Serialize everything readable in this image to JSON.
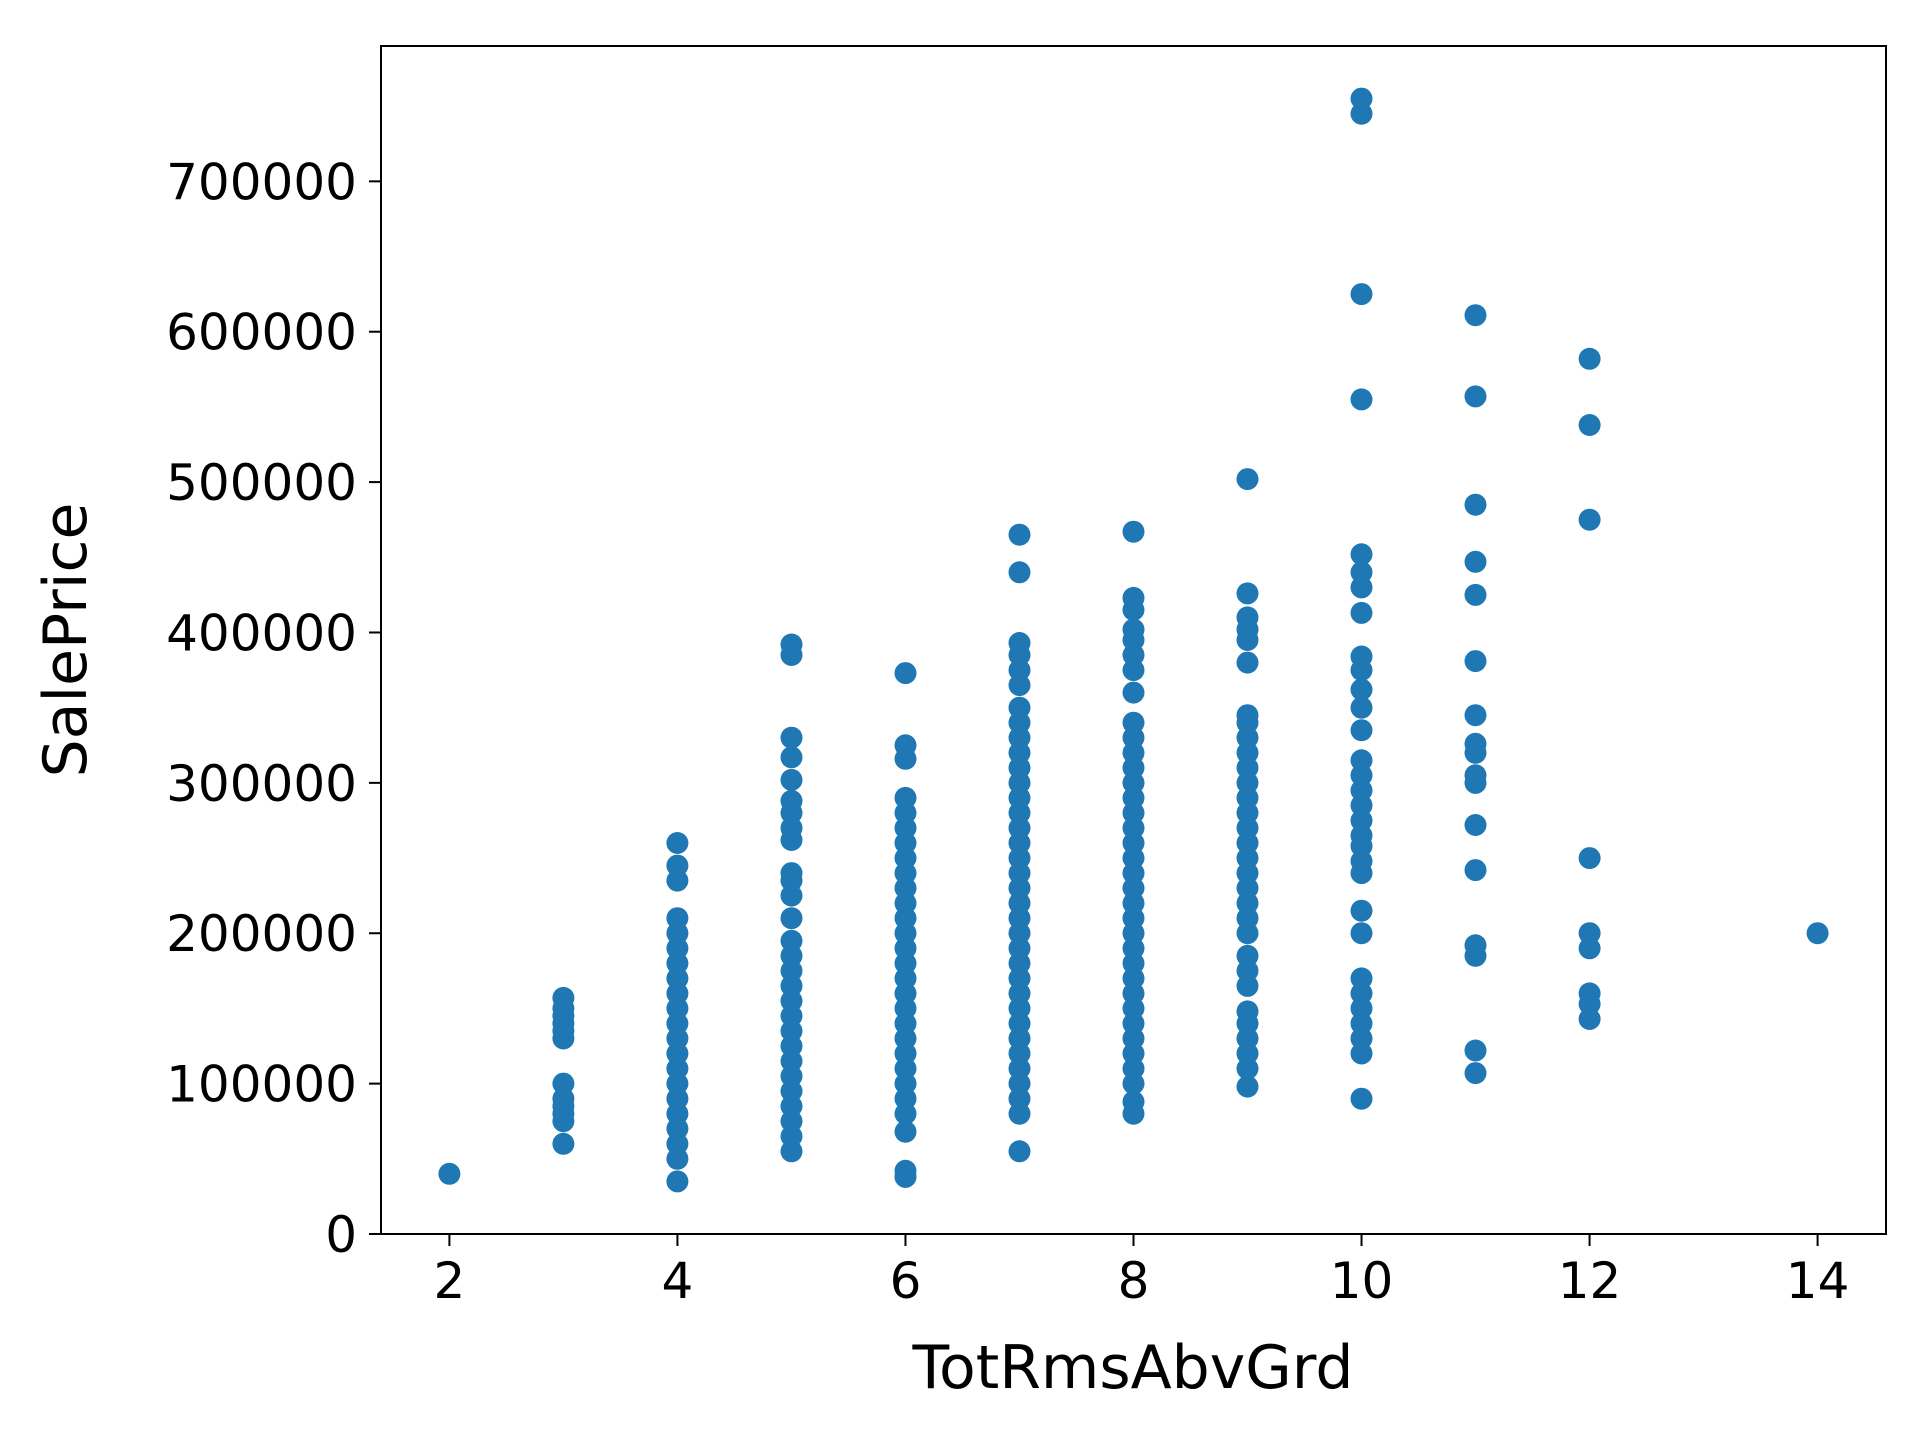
{
  "chart_data": {
    "type": "scatter",
    "title": "",
    "xlabel": "TotRmsAbvGrd",
    "ylabel": "SalePrice",
    "xlim": [
      1.4,
      14.6
    ],
    "ylim": [
      0,
      790000
    ],
    "xticks": [
      2,
      4,
      6,
      8,
      10,
      12,
      14
    ],
    "yticks": [
      0,
      100000,
      200000,
      300000,
      400000,
      500000,
      600000,
      700000
    ],
    "grid": false,
    "legend": "none",
    "marker_color": "#1f77b4",
    "series": [
      {
        "points": [
          [
            2,
            40000
          ],
          [
            3,
            60000
          ],
          [
            3,
            75000
          ],
          [
            3,
            80000
          ],
          [
            3,
            85000
          ],
          [
            3,
            90000
          ],
          [
            3,
            100000
          ],
          [
            3,
            130000
          ],
          [
            3,
            135000
          ],
          [
            3,
            140000
          ],
          [
            3,
            145000
          ],
          [
            3,
            150000
          ],
          [
            3,
            157000
          ],
          [
            4,
            35000
          ],
          [
            4,
            50000
          ],
          [
            4,
            60000
          ],
          [
            4,
            70000
          ],
          [
            4,
            80000
          ],
          [
            4,
            90000
          ],
          [
            4,
            100000
          ],
          [
            4,
            110000
          ],
          [
            4,
            120000
          ],
          [
            4,
            130000
          ],
          [
            4,
            140000
          ],
          [
            4,
            150000
          ],
          [
            4,
            160000
          ],
          [
            4,
            170000
          ],
          [
            4,
            180000
          ],
          [
            4,
            190000
          ],
          [
            4,
            200000
          ],
          [
            4,
            210000
          ],
          [
            4,
            235000
          ],
          [
            4,
            245000
          ],
          [
            4,
            260000
          ],
          [
            5,
            55000
          ],
          [
            5,
            65000
          ],
          [
            5,
            75000
          ],
          [
            5,
            85000
          ],
          [
            5,
            95000
          ],
          [
            5,
            105000
          ],
          [
            5,
            115000
          ],
          [
            5,
            125000
          ],
          [
            5,
            135000
          ],
          [
            5,
            145000
          ],
          [
            5,
            155000
          ],
          [
            5,
            165000
          ],
          [
            5,
            175000
          ],
          [
            5,
            185000
          ],
          [
            5,
            195000
          ],
          [
            5,
            210000
          ],
          [
            5,
            225000
          ],
          [
            5,
            235000
          ],
          [
            5,
            240000
          ],
          [
            5,
            262000
          ],
          [
            5,
            270000
          ],
          [
            5,
            280000
          ],
          [
            5,
            288000
          ],
          [
            5,
            302000
          ],
          [
            5,
            317000
          ],
          [
            5,
            330000
          ],
          [
            5,
            385000
          ],
          [
            5,
            392000
          ],
          [
            6,
            38000
          ],
          [
            6,
            42000
          ],
          [
            6,
            68000
          ],
          [
            6,
            80000
          ],
          [
            6,
            90000
          ],
          [
            6,
            100000
          ],
          [
            6,
            110000
          ],
          [
            6,
            120000
          ],
          [
            6,
            130000
          ],
          [
            6,
            140000
          ],
          [
            6,
            150000
          ],
          [
            6,
            160000
          ],
          [
            6,
            170000
          ],
          [
            6,
            180000
          ],
          [
            6,
            190000
          ],
          [
            6,
            200000
          ],
          [
            6,
            210000
          ],
          [
            6,
            220000
          ],
          [
            6,
            230000
          ],
          [
            6,
            240000
          ],
          [
            6,
            250000
          ],
          [
            6,
            260000
          ],
          [
            6,
            270000
          ],
          [
            6,
            280000
          ],
          [
            6,
            290000
          ],
          [
            6,
            316000
          ],
          [
            6,
            325000
          ],
          [
            6,
            373000
          ],
          [
            7,
            55000
          ],
          [
            7,
            80000
          ],
          [
            7,
            90000
          ],
          [
            7,
            100000
          ],
          [
            7,
            110000
          ],
          [
            7,
            120000
          ],
          [
            7,
            130000
          ],
          [
            7,
            140000
          ],
          [
            7,
            150000
          ],
          [
            7,
            160000
          ],
          [
            7,
            170000
          ],
          [
            7,
            180000
          ],
          [
            7,
            190000
          ],
          [
            7,
            200000
          ],
          [
            7,
            210000
          ],
          [
            7,
            220000
          ],
          [
            7,
            230000
          ],
          [
            7,
            240000
          ],
          [
            7,
            250000
          ],
          [
            7,
            260000
          ],
          [
            7,
            270000
          ],
          [
            7,
            280000
          ],
          [
            7,
            290000
          ],
          [
            7,
            300000
          ],
          [
            7,
            310000
          ],
          [
            7,
            320000
          ],
          [
            7,
            330000
          ],
          [
            7,
            340000
          ],
          [
            7,
            350000
          ],
          [
            7,
            365000
          ],
          [
            7,
            375000
          ],
          [
            7,
            385000
          ],
          [
            7,
            393000
          ],
          [
            7,
            440000
          ],
          [
            7,
            465000
          ],
          [
            8,
            80000
          ],
          [
            8,
            88000
          ],
          [
            8,
            100000
          ],
          [
            8,
            110000
          ],
          [
            8,
            120000
          ],
          [
            8,
            130000
          ],
          [
            8,
            140000
          ],
          [
            8,
            150000
          ],
          [
            8,
            160000
          ],
          [
            8,
            170000
          ],
          [
            8,
            180000
          ],
          [
            8,
            190000
          ],
          [
            8,
            200000
          ],
          [
            8,
            210000
          ],
          [
            8,
            220000
          ],
          [
            8,
            230000
          ],
          [
            8,
            240000
          ],
          [
            8,
            250000
          ],
          [
            8,
            260000
          ],
          [
            8,
            270000
          ],
          [
            8,
            280000
          ],
          [
            8,
            290000
          ],
          [
            8,
            300000
          ],
          [
            8,
            310000
          ],
          [
            8,
            320000
          ],
          [
            8,
            330000
          ],
          [
            8,
            340000
          ],
          [
            8,
            360000
          ],
          [
            8,
            375000
          ],
          [
            8,
            385000
          ],
          [
            8,
            395000
          ],
          [
            8,
            402000
          ],
          [
            8,
            415000
          ],
          [
            8,
            423000
          ],
          [
            8,
            467000
          ],
          [
            9,
            98000
          ],
          [
            9,
            110000
          ],
          [
            9,
            120000
          ],
          [
            9,
            130000
          ],
          [
            9,
            140000
          ],
          [
            9,
            148000
          ],
          [
            9,
            165000
          ],
          [
            9,
            175000
          ],
          [
            9,
            185000
          ],
          [
            9,
            200000
          ],
          [
            9,
            210000
          ],
          [
            9,
            220000
          ],
          [
            9,
            230000
          ],
          [
            9,
            240000
          ],
          [
            9,
            250000
          ],
          [
            9,
            260000
          ],
          [
            9,
            270000
          ],
          [
            9,
            280000
          ],
          [
            9,
            290000
          ],
          [
            9,
            300000
          ],
          [
            9,
            310000
          ],
          [
            9,
            320000
          ],
          [
            9,
            330000
          ],
          [
            9,
            340000
          ],
          [
            9,
            345000
          ],
          [
            9,
            380000
          ],
          [
            9,
            395000
          ],
          [
            9,
            402000
          ],
          [
            9,
            410000
          ],
          [
            9,
            426000
          ],
          [
            9,
            502000
          ],
          [
            10,
            90000
          ],
          [
            10,
            120000
          ],
          [
            10,
            130000
          ],
          [
            10,
            140000
          ],
          [
            10,
            150000
          ],
          [
            10,
            160000
          ],
          [
            10,
            170000
          ],
          [
            10,
            200000
          ],
          [
            10,
            215000
          ],
          [
            10,
            240000
          ],
          [
            10,
            248000
          ],
          [
            10,
            258000
          ],
          [
            10,
            265000
          ],
          [
            10,
            275000
          ],
          [
            10,
            285000
          ],
          [
            10,
            295000
          ],
          [
            10,
            305000
          ],
          [
            10,
            315000
          ],
          [
            10,
            335000
          ],
          [
            10,
            350000
          ],
          [
            10,
            362000
          ],
          [
            10,
            375000
          ],
          [
            10,
            384000
          ],
          [
            10,
            413000
          ],
          [
            10,
            430000
          ],
          [
            10,
            440000
          ],
          [
            10,
            452000
          ],
          [
            10,
            555000
          ],
          [
            10,
            625000
          ],
          [
            10,
            745000
          ],
          [
            10,
            755000
          ],
          [
            11,
            107000
          ],
          [
            11,
            122000
          ],
          [
            11,
            185000
          ],
          [
            11,
            192000
          ],
          [
            11,
            242000
          ],
          [
            11,
            272000
          ],
          [
            11,
            300000
          ],
          [
            11,
            305000
          ],
          [
            11,
            320000
          ],
          [
            11,
            326000
          ],
          [
            11,
            345000
          ],
          [
            11,
            381000
          ],
          [
            11,
            425000
          ],
          [
            11,
            447000
          ],
          [
            11,
            485000
          ],
          [
            11,
            557000
          ],
          [
            11,
            611000
          ],
          [
            12,
            143000
          ],
          [
            12,
            153000
          ],
          [
            12,
            160000
          ],
          [
            12,
            190000
          ],
          [
            12,
            200000
          ],
          [
            12,
            250000
          ],
          [
            12,
            475000
          ],
          [
            12,
            538000
          ],
          [
            12,
            582000
          ],
          [
            14,
            200000
          ]
        ]
      }
    ]
  }
}
